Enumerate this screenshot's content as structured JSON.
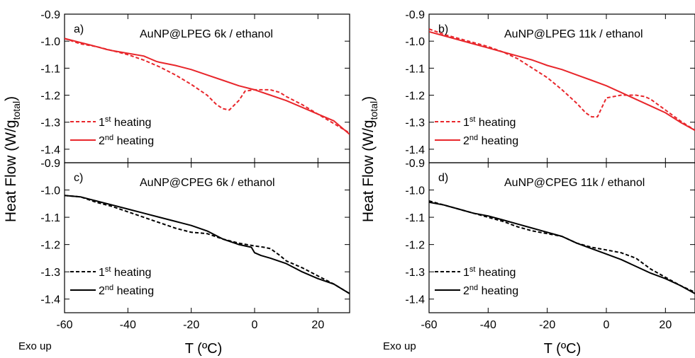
{
  "figure": {
    "left_ylabel": "Heat Flow (W/g",
    "left_ylabel_sub": "total",
    "left_ylabel_close": ")",
    "right_ylabel": "Heat Flow (W/g",
    "right_ylabel_sub": "total",
    "right_ylabel_close": ")",
    "left_xlabel": "T (ºC)",
    "right_xlabel": "T (ºC)",
    "left_note": "Exo up",
    "right_note": "Exo up",
    "legend_base": "heating",
    "legend_ordinal_1": "1",
    "legend_sup_1": "st",
    "legend_ordinal_2": "2",
    "legend_sup_2": "nd"
  },
  "chart_data": [
    {
      "type": "line",
      "panel": "a)",
      "title": "AuNP@LPEG 6k / ethanol",
      "color": "#e8262b",
      "xlim": [
        -60,
        30
      ],
      "ylim": [
        -1.45,
        -0.9
      ],
      "xticks": [
        -60,
        -40,
        -20,
        0,
        20
      ],
      "xtick_labels": [
        "-60",
        "-40",
        "-20",
        "0",
        "20"
      ],
      "yticks": [
        -0.9,
        -1.0,
        -1.1,
        -1.2,
        -1.3,
        -1.4
      ],
      "ytick_labels": [
        "-0.9",
        "-1.0",
        "-1.1",
        "-1.2",
        "-1.3",
        "-1.4"
      ],
      "series": [
        {
          "name": "1st heating",
          "style": "dashed",
          "x": [
            -60,
            -55,
            -50,
            -45,
            -40,
            -35,
            -30,
            -25,
            -20,
            -15,
            -12,
            -10,
            -8,
            -5,
            -3,
            0,
            5,
            8,
            10,
            15,
            20,
            25,
            30
          ],
          "y": [
            -0.99,
            -1.01,
            -1.02,
            -1.035,
            -1.05,
            -1.07,
            -1.095,
            -1.125,
            -1.16,
            -1.2,
            -1.235,
            -1.25,
            -1.255,
            -1.22,
            -1.185,
            -1.18,
            -1.18,
            -1.19,
            -1.205,
            -1.235,
            -1.27,
            -1.305,
            -1.34
          ]
        },
        {
          "name": "2nd heating",
          "style": "solid",
          "x": [
            -60,
            -55,
            -50,
            -47,
            -45,
            -40,
            -35,
            -33,
            -31,
            -30,
            -25,
            -20,
            -15,
            -10,
            -5,
            0,
            5,
            10,
            15,
            20,
            25,
            30
          ],
          "y": [
            -0.99,
            -1.005,
            -1.02,
            -1.03,
            -1.035,
            -1.045,
            -1.055,
            -1.065,
            -1.075,
            -1.078,
            -1.09,
            -1.105,
            -1.125,
            -1.145,
            -1.165,
            -1.18,
            -1.2,
            -1.22,
            -1.245,
            -1.27,
            -1.295,
            -1.345
          ]
        }
      ]
    },
    {
      "type": "line",
      "panel": "b)",
      "title": "AuNP@LPEG 11k / ethanol",
      "color": "#e8262b",
      "xlim": [
        -60,
        30
      ],
      "ylim": [
        -1.45,
        -0.9
      ],
      "xticks": [
        -60,
        -40,
        -20,
        0,
        20
      ],
      "xtick_labels": [
        "-60",
        "-40",
        "-20",
        "0",
        "20"
      ],
      "yticks": [
        -0.9,
        -1.0,
        -1.1,
        -1.2,
        -1.3,
        -1.4
      ],
      "ytick_labels": [
        "-0.9",
        "-1.0",
        "-1.1",
        "-1.2",
        "-1.3",
        "-1.4"
      ],
      "series": [
        {
          "name": "1st heating",
          "style": "dashed",
          "x": [
            -60,
            -55,
            -50,
            -45,
            -40,
            -35,
            -30,
            -25,
            -20,
            -15,
            -10,
            -7,
            -5,
            -3,
            0,
            5,
            10,
            13,
            15,
            20,
            25,
            30
          ],
          "y": [
            -0.955,
            -0.975,
            -0.99,
            -1.005,
            -1.02,
            -1.04,
            -1.065,
            -1.1,
            -1.135,
            -1.18,
            -1.23,
            -1.265,
            -1.28,
            -1.28,
            -1.21,
            -1.2,
            -1.2,
            -1.205,
            -1.215,
            -1.255,
            -1.295,
            -1.33
          ]
        },
        {
          "name": "2nd heating",
          "style": "solid",
          "x": [
            -60,
            -55,
            -50,
            -45,
            -40,
            -35,
            -30,
            -25,
            -20,
            -15,
            -10,
            -5,
            0,
            5,
            10,
            15,
            20,
            25,
            30
          ],
          "y": [
            -0.965,
            -0.98,
            -0.995,
            -1.01,
            -1.025,
            -1.04,
            -1.055,
            -1.07,
            -1.09,
            -1.105,
            -1.125,
            -1.145,
            -1.165,
            -1.19,
            -1.215,
            -1.24,
            -1.265,
            -1.3,
            -1.33
          ]
        }
      ]
    },
    {
      "type": "line",
      "panel": "c)",
      "title": "AuNP@CPEG 6k / ethanol",
      "color": "#000000",
      "xlim": [
        -60,
        30
      ],
      "ylim": [
        -1.45,
        -0.9
      ],
      "xticks": [
        -60,
        -40,
        -20,
        0,
        20
      ],
      "xtick_labels": [
        "-60",
        "-40",
        "-20",
        "0",
        "20"
      ],
      "yticks": [
        -0.9,
        -1.0,
        -1.1,
        -1.2,
        -1.3,
        -1.4
      ],
      "ytick_labels": [
        "-0.9",
        "-1.0",
        "-1.1",
        "-1.2",
        "-1.3",
        "-1.4"
      ],
      "series": [
        {
          "name": "1st heating",
          "style": "dashed",
          "x": [
            -60,
            -55,
            -50,
            -45,
            -40,
            -35,
            -30,
            -25,
            -20,
            -15,
            -10,
            -5,
            0,
            3,
            5,
            8,
            10,
            15,
            20,
            25,
            30
          ],
          "y": [
            -1.02,
            -1.025,
            -1.045,
            -1.06,
            -1.08,
            -1.1,
            -1.12,
            -1.14,
            -1.155,
            -1.16,
            -1.18,
            -1.195,
            -1.205,
            -1.21,
            -1.215,
            -1.24,
            -1.26,
            -1.285,
            -1.315,
            -1.345,
            -1.38
          ]
        },
        {
          "name": "2nd heating",
          "style": "solid",
          "x": [
            -60,
            -55,
            -50,
            -45,
            -40,
            -35,
            -30,
            -25,
            -20,
            -15,
            -10,
            -5,
            -1,
            0,
            2,
            5,
            10,
            15,
            20,
            25,
            30
          ],
          "y": [
            -1.02,
            -1.025,
            -1.04,
            -1.055,
            -1.07,
            -1.085,
            -1.1,
            -1.115,
            -1.13,
            -1.15,
            -1.18,
            -1.2,
            -1.21,
            -1.23,
            -1.24,
            -1.25,
            -1.27,
            -1.3,
            -1.325,
            -1.345,
            -1.38
          ]
        }
      ]
    },
    {
      "type": "line",
      "panel": "d)",
      "title": "AuNP@CPEG 11k / ethanol",
      "color": "#000000",
      "xlim": [
        -60,
        30
      ],
      "ylim": [
        -1.45,
        -0.9
      ],
      "xticks": [
        -60,
        -40,
        -20,
        0,
        20
      ],
      "xtick_labels": [
        "-60",
        "-40",
        "-20",
        "0",
        "20"
      ],
      "yticks": [
        -0.9,
        -1.0,
        -1.1,
        -1.2,
        -1.3,
        -1.4
      ],
      "ytick_labels": [
        "-0.9",
        "-1.0",
        "-1.1",
        "-1.2",
        "-1.3",
        "-1.4"
      ],
      "series": [
        {
          "name": "1st heating",
          "style": "dashed",
          "x": [
            -60,
            -55,
            -50,
            -45,
            -40,
            -35,
            -30,
            -25,
            -20,
            -15,
            -10,
            -5,
            0,
            5,
            10,
            15,
            20,
            25,
            30
          ],
          "y": [
            -1.04,
            -1.055,
            -1.07,
            -1.085,
            -1.1,
            -1.115,
            -1.135,
            -1.15,
            -1.16,
            -1.17,
            -1.195,
            -1.21,
            -1.22,
            -1.23,
            -1.25,
            -1.29,
            -1.32,
            -1.35,
            -1.375
          ]
        },
        {
          "name": "2nd heating",
          "style": "solid",
          "x": [
            -60,
            -55,
            -50,
            -45,
            -40,
            -35,
            -30,
            -25,
            -20,
            -15,
            -10,
            -5,
            0,
            5,
            10,
            15,
            20,
            25,
            30
          ],
          "y": [
            -1.045,
            -1.055,
            -1.07,
            -1.085,
            -1.095,
            -1.11,
            -1.125,
            -1.14,
            -1.155,
            -1.17,
            -1.195,
            -1.215,
            -1.235,
            -1.255,
            -1.28,
            -1.305,
            -1.325,
            -1.35,
            -1.38
          ]
        }
      ]
    }
  ]
}
